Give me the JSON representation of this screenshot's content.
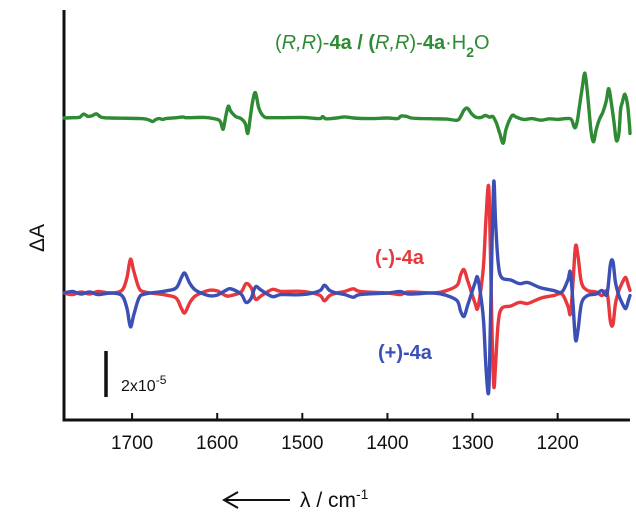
{
  "chart_data": {
    "type": "line",
    "xlabel_prefix": "λ / cm",
    "xlabel_sup": "-1",
    "ylabel": "ΔA",
    "xlim": [
      1780,
      1115
    ],
    "x_ticks": [
      1700,
      1600,
      1500,
      1400,
      1300,
      1200
    ],
    "x_tick_labels": [
      "1700",
      "1600",
      "1500",
      "1400",
      "1300",
      "1200"
    ],
    "grid": false,
    "scale_bar": {
      "base": "2x10",
      "exponent": "-5"
    },
    "series": [
      {
        "name_parts": [
          "(",
          "R,R",
          ")-",
          "4a",
          " / (",
          "R,R",
          ")-",
          "4a",
          "·H",
          "2",
          "O"
        ],
        "color": "#2e8b34",
        "baseline": 0.62,
        "points": [
          [
            1780,
            0
          ],
          [
            1770,
            0.01
          ],
          [
            1762,
            0.02
          ],
          [
            1757,
            0.14
          ],
          [
            1752,
            0.06
          ],
          [
            1747,
            0.08
          ],
          [
            1742,
            0.15
          ],
          [
            1736,
            0.03
          ],
          [
            1725,
            0
          ],
          [
            1690,
            -0.02
          ],
          [
            1680,
            -0.07
          ],
          [
            1676,
            -0.13
          ],
          [
            1672,
            -0.05
          ],
          [
            1668,
            -0.02
          ],
          [
            1664,
            -0.05
          ],
          [
            1660,
            -0.02
          ],
          [
            1648,
            0.01
          ],
          [
            1640,
            0.04
          ],
          [
            1636,
            0.01
          ],
          [
            1615,
            0.02
          ],
          [
            1600,
            -0.05
          ],
          [
            1596,
            -0.15
          ],
          [
            1593,
            -0.4
          ],
          [
            1590,
            0.05
          ],
          [
            1587,
            0.42
          ],
          [
            1584,
            0.24
          ],
          [
            1578,
            0.05
          ],
          [
            1572,
            -0.02
          ],
          [
            1567,
            -0.2
          ],
          [
            1564,
            -0.55
          ],
          [
            1561,
            0.05
          ],
          [
            1558,
            0.65
          ],
          [
            1555,
            0.9
          ],
          [
            1551,
            0.35
          ],
          [
            1545,
            0.05
          ],
          [
            1535,
            0.01
          ],
          [
            1500,
            0.02
          ],
          [
            1480,
            -0.02
          ],
          [
            1476,
            0.05
          ],
          [
            1472,
            -0.03
          ],
          [
            1460,
            0
          ],
          [
            1450,
            0.04
          ],
          [
            1440,
            0
          ],
          [
            1420,
            -0.02
          ],
          [
            1400,
            0
          ],
          [
            1388,
            -0.02
          ],
          [
            1384,
            0.07
          ],
          [
            1378,
            0.06
          ],
          [
            1372,
            0
          ],
          [
            1360,
            -0.02
          ],
          [
            1345,
            -0.03
          ],
          [
            1330,
            -0.04
          ],
          [
            1318,
            -0.08
          ],
          [
            1314,
            0.05
          ],
          [
            1310,
            0.28
          ],
          [
            1306,
            0.35
          ],
          [
            1301,
            0.15
          ],
          [
            1296,
            0.03
          ],
          [
            1290,
            0.02
          ],
          [
            1285,
            0.09
          ],
          [
            1280,
            0.03
          ],
          [
            1276,
            0.05
          ],
          [
            1272,
            -0.18
          ],
          [
            1268,
            -0.55
          ],
          [
            1264,
            -0.9
          ],
          [
            1261,
            -0.45
          ],
          [
            1257,
            -0.1
          ],
          [
            1253,
            0.1
          ],
          [
            1249,
            0.04
          ],
          [
            1240,
            -0.05
          ],
          [
            1230,
            -0.02
          ],
          [
            1220,
            -0.08
          ],
          [
            1210,
            -0.03
          ],
          [
            1200,
            -0.05
          ],
          [
            1190,
            -0.02
          ],
          [
            1184,
            -0.05
          ],
          [
            1180,
            -0.35
          ],
          [
            1177,
            -0.12
          ],
          [
            1174,
            0.5
          ],
          [
            1171,
            1.1
          ],
          [
            1168,
            1.6
          ],
          [
            1165,
            0.9
          ],
          [
            1161,
            -0.4
          ],
          [
            1158,
            -0.85
          ],
          [
            1155,
            -0.45
          ],
          [
            1151,
            -0.05
          ],
          [
            1147,
            0.2
          ],
          [
            1143,
            0.6
          ],
          [
            1140,
            1.05
          ],
          [
            1137,
            0.55
          ],
          [
            1134,
            -0.1
          ],
          [
            1131,
            -0.8
          ],
          [
            1128,
            -0.55
          ],
          [
            1126,
            0.3
          ],
          [
            1124,
            0.55
          ],
          [
            1121,
            0.85
          ],
          [
            1118,
            0.5
          ],
          [
            1116,
            -0.1
          ],
          [
            1115,
            -0.55
          ]
        ]
      },
      {
        "name_parts": [
          "(-)-",
          "4a"
        ],
        "color": "#e8383d",
        "baseline": 0.0,
        "points": [
          [
            1780,
            0
          ],
          [
            1770,
            -0.03
          ],
          [
            1760,
            0.02
          ],
          [
            1750,
            -0.02
          ],
          [
            1740,
            0.03
          ],
          [
            1725,
            0
          ],
          [
            1712,
            0.05
          ],
          [
            1706,
            0.3
          ],
          [
            1702,
            0.65
          ],
          [
            1698,
            0.42
          ],
          [
            1692,
            0.1
          ],
          [
            1685,
            0.02
          ],
          [
            1660,
            -0.04
          ],
          [
            1648,
            -0.1
          ],
          [
            1642,
            -0.3
          ],
          [
            1638,
            -0.38
          ],
          [
            1632,
            -0.18
          ],
          [
            1625,
            -0.05
          ],
          [
            1610,
            0.05
          ],
          [
            1600,
            0.04
          ],
          [
            1590,
            -0.05
          ],
          [
            1584,
            -0.05
          ],
          [
            1572,
            0.02
          ],
          [
            1566,
            0.18
          ],
          [
            1560,
            0.1
          ],
          [
            1555,
            -0.12
          ],
          [
            1548,
            -0.05
          ],
          [
            1535,
            0.07
          ],
          [
            1525,
            0.03
          ],
          [
            1500,
            0.03
          ],
          [
            1480,
            -0.04
          ],
          [
            1474,
            -0.15
          ],
          [
            1468,
            -0.05
          ],
          [
            1460,
            0
          ],
          [
            1450,
            0.03
          ],
          [
            1440,
            0.08
          ],
          [
            1432,
            0.03
          ],
          [
            1400,
            0
          ],
          [
            1385,
            -0.03
          ],
          [
            1375,
            0.02
          ],
          [
            1345,
            0
          ],
          [
            1330,
            0.05
          ],
          [
            1318,
            0.15
          ],
          [
            1314,
            0.35
          ],
          [
            1310,
            0.45
          ],
          [
            1306,
            0.25
          ],
          [
            1302,
            0.05
          ],
          [
            1297,
            -0.2
          ],
          [
            1294,
            -0.3
          ],
          [
            1290,
            0.1
          ],
          [
            1287,
            0.55
          ],
          [
            1284,
            1.5
          ],
          [
            1281,
            2.05
          ],
          [
            1279,
            0.8
          ],
          [
            1277,
            -0.8
          ],
          [
            1275,
            -1.8
          ],
          [
            1273,
            -1.4
          ],
          [
            1270,
            -0.6
          ],
          [
            1266,
            -0.3
          ],
          [
            1255,
            -0.25
          ],
          [
            1245,
            -0.18
          ],
          [
            1235,
            -0.2
          ],
          [
            1220,
            -0.1
          ],
          [
            1205,
            -0.05
          ],
          [
            1195,
            -0.02
          ],
          [
            1188,
            -0.25
          ],
          [
            1185,
            -0.4
          ],
          [
            1182,
            0.2
          ],
          [
            1179,
            0.9
          ],
          [
            1176,
            0.7
          ],
          [
            1172,
            0.2
          ],
          [
            1165,
            0.05
          ],
          [
            1155,
            0.02
          ],
          [
            1148,
            -0.05
          ],
          [
            1142,
            0.02
          ],
          [
            1138,
            -0.55
          ],
          [
            1135,
            -0.6
          ],
          [
            1132,
            -0.2
          ],
          [
            1128,
            0.05
          ],
          [
            1124,
            0.2
          ],
          [
            1120,
            0.3
          ],
          [
            1117,
            0.15
          ],
          [
            1115,
            0.05
          ]
        ]
      },
      {
        "name_parts": [
          "(+)-",
          "4a"
        ],
        "color": "#3b4fb5",
        "baseline": 0.0,
        "points": [
          [
            1780,
            0
          ],
          [
            1770,
            0.03
          ],
          [
            1760,
            -0.02
          ],
          [
            1750,
            0.02
          ],
          [
            1740,
            -0.03
          ],
          [
            1725,
            0
          ],
          [
            1712,
            -0.05
          ],
          [
            1706,
            -0.3
          ],
          [
            1702,
            -0.65
          ],
          [
            1698,
            -0.42
          ],
          [
            1692,
            -0.1
          ],
          [
            1685,
            -0.02
          ],
          [
            1660,
            0.04
          ],
          [
            1648,
            0.1
          ],
          [
            1642,
            0.3
          ],
          [
            1638,
            0.38
          ],
          [
            1632,
            0.18
          ],
          [
            1625,
            0.05
          ],
          [
            1610,
            -0.05
          ],
          [
            1600,
            -0.04
          ],
          [
            1590,
            0.05
          ],
          [
            1584,
            0.08
          ],
          [
            1572,
            -0.02
          ],
          [
            1566,
            -0.18
          ],
          [
            1560,
            -0.1
          ],
          [
            1555,
            0.12
          ],
          [
            1548,
            0.05
          ],
          [
            1535,
            -0.07
          ],
          [
            1525,
            -0.03
          ],
          [
            1500,
            -0.03
          ],
          [
            1480,
            0.04
          ],
          [
            1474,
            0.15
          ],
          [
            1468,
            0.05
          ],
          [
            1460,
            0
          ],
          [
            1450,
            -0.03
          ],
          [
            1440,
            -0.08
          ],
          [
            1432,
            -0.03
          ],
          [
            1400,
            0
          ],
          [
            1385,
            0.03
          ],
          [
            1375,
            -0.02
          ],
          [
            1345,
            0
          ],
          [
            1330,
            -0.05
          ],
          [
            1318,
            -0.15
          ],
          [
            1314,
            -0.35
          ],
          [
            1310,
            -0.45
          ],
          [
            1306,
            -0.25
          ],
          [
            1302,
            -0.05
          ],
          [
            1297,
            0.2
          ],
          [
            1294,
            0.3
          ],
          [
            1290,
            -0.1
          ],
          [
            1287,
            -0.55
          ],
          [
            1284,
            -1.5
          ],
          [
            1281,
            -1.9
          ],
          [
            1279,
            -0.6
          ],
          [
            1277,
            1.0
          ],
          [
            1275,
            2.15
          ],
          [
            1273,
            1.4
          ],
          [
            1270,
            0.6
          ],
          [
            1266,
            0.3
          ],
          [
            1255,
            0.25
          ],
          [
            1245,
            0.18
          ],
          [
            1235,
            0.2
          ],
          [
            1220,
            0.1
          ],
          [
            1205,
            0.05
          ],
          [
            1195,
            0.02
          ],
          [
            1188,
            0.25
          ],
          [
            1185,
            0.4
          ],
          [
            1182,
            -0.2
          ],
          [
            1179,
            -0.9
          ],
          [
            1176,
            -0.7
          ],
          [
            1172,
            -0.2
          ],
          [
            1165,
            -0.05
          ],
          [
            1155,
            -0.02
          ],
          [
            1148,
            0.05
          ],
          [
            1142,
            -0.02
          ],
          [
            1138,
            0.55
          ],
          [
            1135,
            0.6
          ],
          [
            1132,
            0.2
          ],
          [
            1128,
            -0.05
          ],
          [
            1124,
            -0.2
          ],
          [
            1120,
            -0.3
          ],
          [
            1117,
            -0.15
          ],
          [
            1115,
            -0.05
          ]
        ]
      }
    ]
  }
}
